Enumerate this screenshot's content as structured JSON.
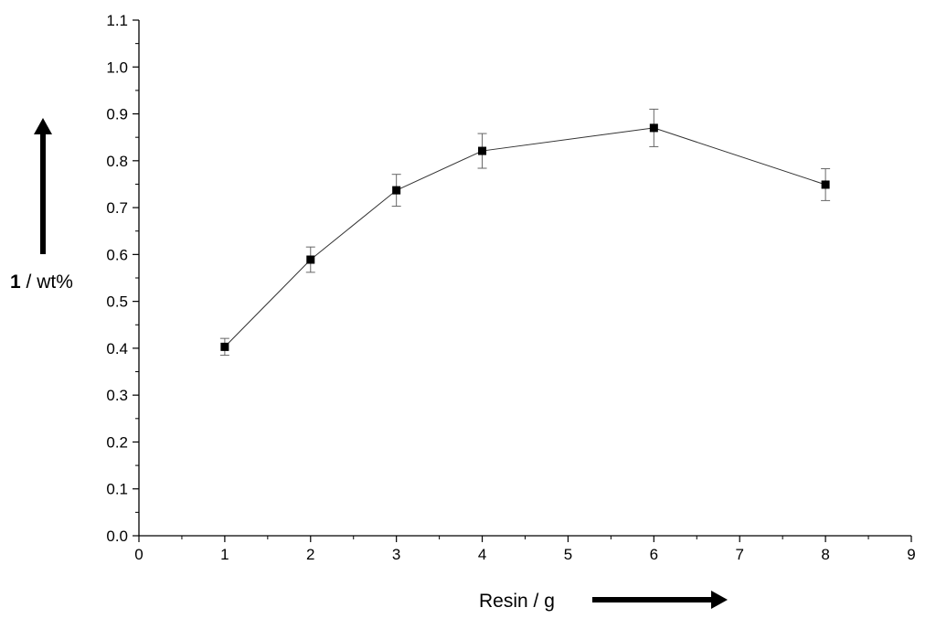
{
  "chart_data": {
    "type": "scatter",
    "title": "",
    "xlabel": "Resin / g",
    "ylabel_bold": "1",
    "ylabel_rest": " / wt%",
    "xlim": [
      0,
      9
    ],
    "ylim": [
      0.0,
      1.1
    ],
    "x_ticks": [
      "0",
      "1",
      "2",
      "3",
      "4",
      "5",
      "6",
      "7",
      "8",
      "9"
    ],
    "y_ticks": [
      "0.0",
      "0.1",
      "0.2",
      "0.3",
      "0.4",
      "0.5",
      "0.6",
      "0.7",
      "0.8",
      "0.9",
      "1.0",
      "1.1"
    ],
    "grid": false,
    "marker": "square",
    "line": true,
    "error_bars": true,
    "points": [
      {
        "x": 1,
        "y": 0.403,
        "err": 0.018
      },
      {
        "x": 2,
        "y": 0.589,
        "err": 0.027
      },
      {
        "x": 3,
        "y": 0.737,
        "err": 0.034
      },
      {
        "x": 4,
        "y": 0.821,
        "err": 0.037
      },
      {
        "x": 6,
        "y": 0.87,
        "err": 0.04
      },
      {
        "x": 8,
        "y": 0.749,
        "err": 0.034
      }
    ],
    "colors": {
      "marker": "#000000",
      "line": "#333333",
      "error_bar": "#666666",
      "axis": "#000000"
    }
  }
}
